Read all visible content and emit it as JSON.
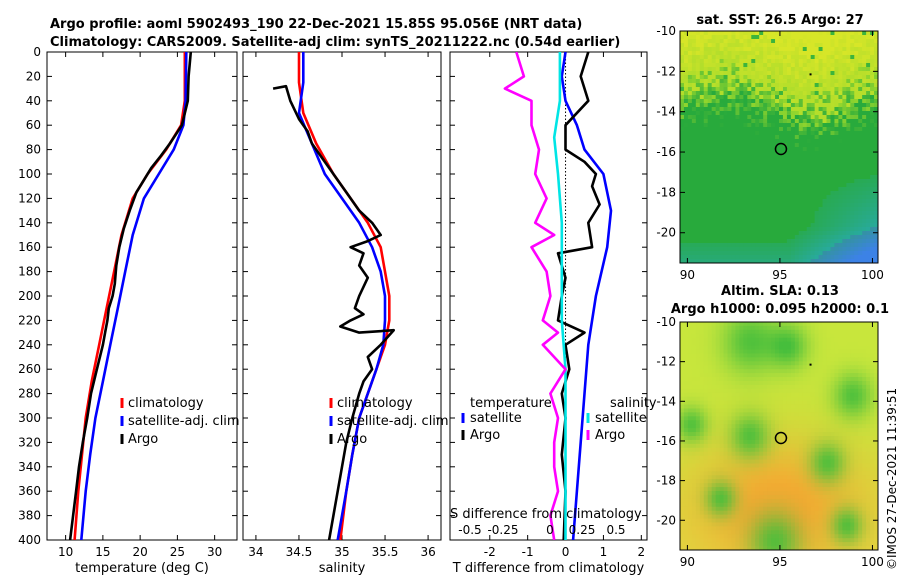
{
  "header": {
    "line1": "Argo profile: aoml 5902493_190 22-Dec-2021 15.85S 95.056E (NRT data)",
    "line2": "Climatology: CARS2009. Satellite-adj clim: synTS_20211222.nc (0.54d earlier)"
  },
  "colors": {
    "climatology": "#ff0000",
    "satellite": "#0000ff",
    "argo": "#000000",
    "cyan": "#00e5e5",
    "magenta": "#ff00ff"
  },
  "chart_data": [
    {
      "type": "line",
      "id": "temperature",
      "xlabel": "temperature (deg C)",
      "ylabel": "",
      "xlim": [
        7.5,
        33
      ],
      "ylim": [
        400,
        0
      ],
      "xticks": [
        10,
        15,
        20,
        25,
        30
      ],
      "yticks": [
        0,
        20,
        40,
        60,
        80,
        100,
        120,
        140,
        160,
        180,
        200,
        220,
        240,
        260,
        280,
        300,
        320,
        340,
        360,
        380,
        400
      ],
      "legend": [
        "climatology",
        "satellite-adj. clim",
        "Argo"
      ],
      "legend_position": "lower-right",
      "series": [
        {
          "name": "climatology",
          "color": "#ff0000",
          "points": [
            [
              26.0,
              0
            ],
            [
              26.0,
              40
            ],
            [
              25.5,
              60
            ],
            [
              23.5,
              80
            ],
            [
              21.0,
              100
            ],
            [
              19.0,
              120
            ],
            [
              17.5,
              150
            ],
            [
              16.5,
              180
            ],
            [
              15.5,
              210
            ],
            [
              14.5,
              240
            ],
            [
              13.5,
              270
            ],
            [
              12.7,
              300
            ],
            [
              12.2,
              330
            ],
            [
              11.7,
              360
            ],
            [
              11.2,
              400
            ]
          ]
        },
        {
          "name": "satellite-adj. clim",
          "color": "#0000ff",
          "points": [
            [
              26.2,
              0
            ],
            [
              26.1,
              40
            ],
            [
              25.8,
              60
            ],
            [
              24.5,
              80
            ],
            [
              22.5,
              100
            ],
            [
              20.5,
              120
            ],
            [
              19.0,
              150
            ],
            [
              18.0,
              180
            ],
            [
              17.0,
              210
            ],
            [
              16.0,
              240
            ],
            [
              15.0,
              270
            ],
            [
              14.0,
              300
            ],
            [
              13.3,
              330
            ],
            [
              12.7,
              360
            ],
            [
              12.1,
              400
            ]
          ]
        },
        {
          "name": "Argo",
          "color": "#000000",
          "points": [
            [
              26.8,
              0
            ],
            [
              26.5,
              20
            ],
            [
              26.4,
              40
            ],
            [
              25.6,
              60
            ],
            [
              24.0,
              75
            ],
            [
              22.8,
              85
            ],
            [
              21.5,
              95
            ],
            [
              20.5,
              105
            ],
            [
              19.5,
              115
            ],
            [
              18.6,
              130
            ],
            [
              17.8,
              145
            ],
            [
              17.2,
              160
            ],
            [
              16.8,
              175
            ],
            [
              16.6,
              190
            ],
            [
              16.3,
              200
            ],
            [
              15.8,
              210
            ],
            [
              15.6,
              220
            ],
            [
              15.3,
              230
            ],
            [
              15.0,
              240
            ],
            [
              14.2,
              260
            ],
            [
              13.4,
              280
            ],
            [
              12.9,
              300
            ],
            [
              12.3,
              320
            ],
            [
              11.8,
              340
            ],
            [
              11.4,
              360
            ],
            [
              11.0,
              380
            ],
            [
              10.6,
              400
            ]
          ]
        }
      ]
    },
    {
      "type": "line",
      "id": "salinity",
      "xlabel": "salinity",
      "ylabel": "",
      "xlim": [
        33.85,
        36.15
      ],
      "ylim": [
        400,
        0
      ],
      "xticks": [
        34,
        34.5,
        35,
        35.5,
        36
      ],
      "legend": [
        "climatology",
        "satellite-adj. clim",
        "Argo"
      ],
      "legend_position": "lower-right",
      "series": [
        {
          "name": "climatology",
          "color": "#ff0000",
          "points": [
            [
              34.5,
              0
            ],
            [
              34.5,
              25
            ],
            [
              34.55,
              50
            ],
            [
              34.7,
              75
            ],
            [
              34.9,
              100
            ],
            [
              35.1,
              120
            ],
            [
              35.3,
              140
            ],
            [
              35.45,
              160
            ],
            [
              35.5,
              180
            ],
            [
              35.55,
              200
            ],
            [
              35.55,
              220
            ],
            [
              35.5,
              240
            ],
            [
              35.4,
              260
            ],
            [
              35.3,
              280
            ],
            [
              35.2,
              300
            ],
            [
              35.12,
              330
            ],
            [
              35.05,
              360
            ],
            [
              34.98,
              400
            ]
          ]
        },
        {
          "name": "satellite-adj. clim",
          "color": "#0000ff",
          "points": [
            [
              34.55,
              0
            ],
            [
              34.55,
              25
            ],
            [
              34.5,
              50
            ],
            [
              34.65,
              75
            ],
            [
              34.8,
              100
            ],
            [
              35.0,
              120
            ],
            [
              35.2,
              140
            ],
            [
              35.35,
              160
            ],
            [
              35.45,
              180
            ],
            [
              35.5,
              200
            ],
            [
              35.5,
              220
            ],
            [
              35.48,
              240
            ],
            [
              35.4,
              260
            ],
            [
              35.3,
              280
            ],
            [
              35.2,
              300
            ],
            [
              35.12,
              330
            ],
            [
              35.05,
              360
            ],
            [
              34.95,
              400
            ]
          ]
        },
        {
          "name": "Argo",
          "color": "#000000",
          "points": [
            [
              34.2,
              30
            ],
            [
              34.35,
              28
            ],
            [
              34.4,
              40
            ],
            [
              34.5,
              55
            ],
            [
              34.6,
              65
            ],
            [
              34.65,
              75
            ],
            [
              34.75,
              85
            ],
            [
              34.85,
              95
            ],
            [
              34.95,
              105
            ],
            [
              35.05,
              115
            ],
            [
              35.2,
              130
            ],
            [
              35.35,
              140
            ],
            [
              35.45,
              150
            ],
            [
              35.3,
              155
            ],
            [
              35.1,
              160
            ],
            [
              35.25,
              165
            ],
            [
              35.2,
              175
            ],
            [
              35.3,
              185
            ],
            [
              35.2,
              200
            ],
            [
              35.15,
              210
            ],
            [
              35.25,
              215
            ],
            [
              35.1,
              220
            ],
            [
              34.98,
              225
            ],
            [
              35.2,
              230
            ],
            [
              35.6,
              228
            ],
            [
              35.45,
              240
            ],
            [
              35.3,
              250
            ],
            [
              35.35,
              260
            ],
            [
              35.25,
              270
            ],
            [
              35.2,
              280
            ],
            [
              35.12,
              300
            ],
            [
              35.05,
              320
            ],
            [
              35.0,
              340
            ],
            [
              34.95,
              360
            ],
            [
              34.9,
              380
            ],
            [
              34.85,
              400
            ]
          ]
        }
      ]
    },
    {
      "type": "line",
      "id": "difference",
      "xlabel": "T difference from climatology",
      "xlabel_top": "S difference from climatology",
      "xlim": [
        -3.05,
        2.15
      ],
      "ylim": [
        400,
        0
      ],
      "xticks": [
        -2,
        -1,
        0,
        1,
        2
      ],
      "xticks_secondary": [
        "-0.5",
        "-0.25",
        "0",
        "0.25",
        "0.5"
      ],
      "zero_line": "dotted",
      "legend_groups": [
        {
          "title": "temperature",
          "entries": [
            "satellite",
            "Argo"
          ]
        },
        {
          "title": "salinity",
          "entries": [
            "satellite",
            "Argo"
          ]
        }
      ],
      "legend_position": "lower-center",
      "series": [
        {
          "name": "temperature satellite",
          "color": "#0000ff",
          "points": [
            [
              0.0,
              0
            ],
            [
              -0.1,
              20
            ],
            [
              0.0,
              40
            ],
            [
              0.3,
              60
            ],
            [
              0.5,
              80
            ],
            [
              1.0,
              100
            ],
            [
              1.2,
              130
            ],
            [
              1.1,
              160
            ],
            [
              0.8,
              200
            ],
            [
              0.6,
              240
            ],
            [
              0.5,
              280
            ],
            [
              0.4,
              320
            ],
            [
              0.3,
              360
            ],
            [
              0.2,
              400
            ]
          ]
        },
        {
          "name": "temperature Argo",
          "color": "#000000",
          "points": [
            [
              0.6,
              0
            ],
            [
              0.4,
              20
            ],
            [
              0.6,
              40
            ],
            [
              0.0,
              60
            ],
            [
              0.0,
              80
            ],
            [
              0.5,
              90
            ],
            [
              0.8,
              100
            ],
            [
              0.7,
              110
            ],
            [
              0.9,
              125
            ],
            [
              0.6,
              140
            ],
            [
              0.7,
              160
            ],
            [
              -0.2,
              165
            ],
            [
              0.0,
              185
            ],
            [
              -0.1,
              200
            ],
            [
              -0.2,
              220
            ],
            [
              0.5,
              230
            ],
            [
              0.0,
              240
            ],
            [
              0.1,
              260
            ],
            [
              -0.1,
              280
            ],
            [
              0.0,
              300
            ],
            [
              -0.1,
              330
            ],
            [
              0.0,
              360
            ],
            [
              -0.05,
              400
            ]
          ]
        },
        {
          "name": "salinity satellite",
          "color": "#00e5e5",
          "points": [
            [
              -0.15,
              0
            ],
            [
              -0.15,
              40
            ],
            [
              -0.3,
              70
            ],
            [
              -0.2,
              100
            ],
            [
              -0.1,
              140
            ],
            [
              -0.1,
              180
            ],
            [
              -0.1,
              220
            ],
            [
              0.0,
              260
            ],
            [
              0.0,
              320
            ],
            [
              0.0,
              400
            ]
          ]
        },
        {
          "name": "salinity Argo",
          "color": "#ff00ff",
          "points": [
            [
              -1.3,
              0
            ],
            [
              -1.1,
              20
            ],
            [
              -1.6,
              30
            ],
            [
              -0.9,
              40
            ],
            [
              -0.9,
              60
            ],
            [
              -0.7,
              80
            ],
            [
              -0.8,
              100
            ],
            [
              -0.5,
              120
            ],
            [
              -0.8,
              140
            ],
            [
              -0.3,
              150
            ],
            [
              -0.9,
              160
            ],
            [
              -0.5,
              180
            ],
            [
              -0.4,
              200
            ],
            [
              -0.6,
              220
            ],
            [
              -0.2,
              230
            ],
            [
              -0.6,
              240
            ],
            [
              0.0,
              260
            ],
            [
              -0.4,
              280
            ],
            [
              -0.2,
              300
            ],
            [
              -0.3,
              320
            ],
            [
              -0.3,
              340
            ],
            [
              -0.2,
              360
            ],
            [
              -0.4,
              380
            ],
            [
              -0.3,
              400
            ]
          ]
        }
      ]
    },
    {
      "type": "heatmap",
      "id": "sst-map",
      "title": "sat. SST: 26.5 Argo: 27",
      "xlim": [
        89.6,
        100.3
      ],
      "ylim": [
        -21.5,
        -10
      ],
      "xticks": [
        90,
        95,
        100
      ],
      "yticks": [
        -10,
        -12,
        -14,
        -16,
        -18,
        -20
      ],
      "marker": {
        "lon": 95.056,
        "lat": -15.85
      },
      "description": "yellow-green north, green band mid, cyan-blue southeast"
    },
    {
      "type": "heatmap",
      "id": "sla-map",
      "title": "Altim. SLA: 0.13",
      "subtitle": "Argo h1000: 0.095 h2000: 0.1",
      "xlim": [
        89.6,
        100.3
      ],
      "ylim": [
        -21.5,
        -10
      ],
      "xticks": [
        90,
        95,
        100
      ],
      "yticks": [
        -10,
        -12,
        -14,
        -16,
        -18,
        -20
      ],
      "marker": {
        "lon": 95.056,
        "lat": -15.85
      },
      "description": "yellow-green with green blobs, orange south"
    }
  ],
  "watermark": "©IMOS 27-Dec-2021 11:39:51"
}
